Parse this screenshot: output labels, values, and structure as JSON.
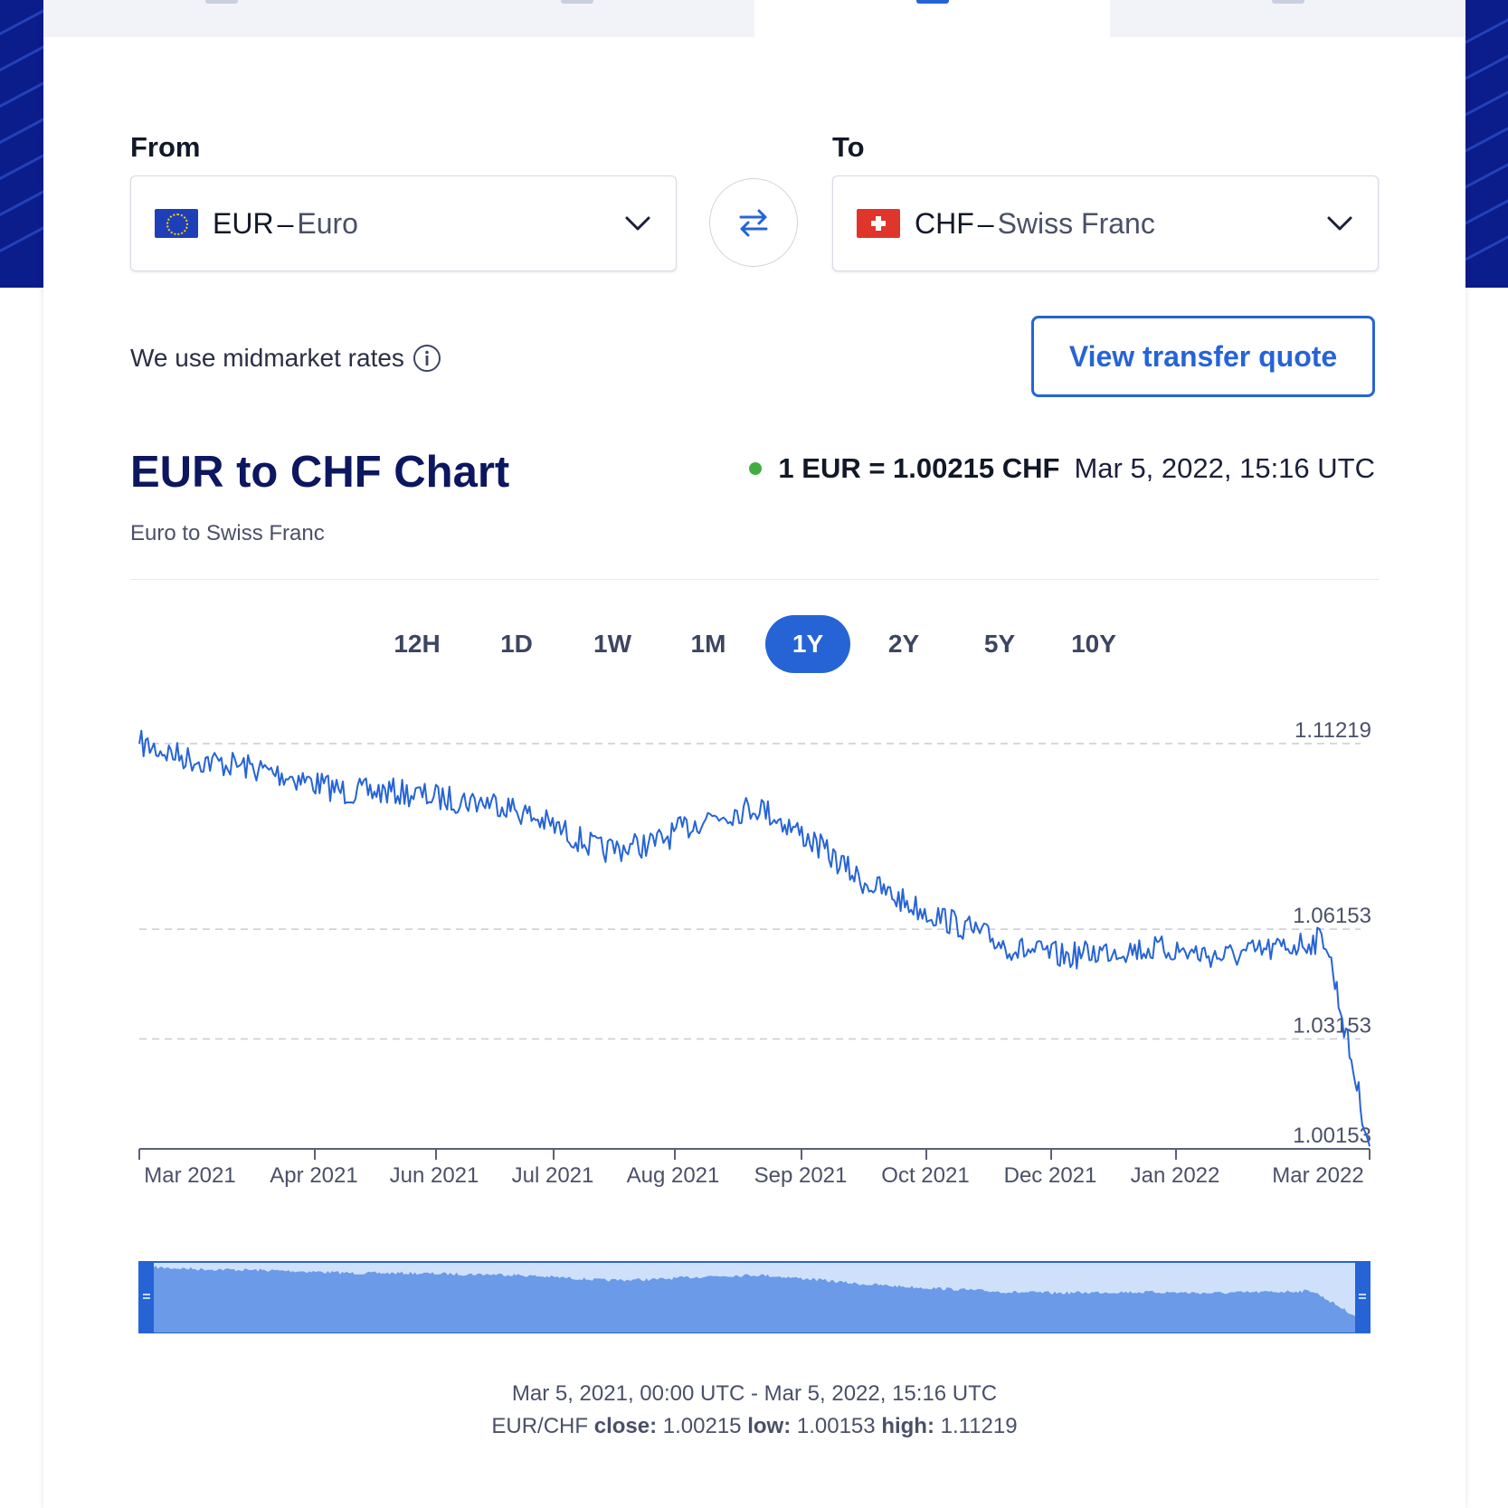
{
  "from": {
    "label": "From",
    "code": "EUR",
    "name": "Euro"
  },
  "to": {
    "label": "To",
    "code": "CHF",
    "name": "Swiss Franc"
  },
  "dash": "–",
  "midmarket_text": "We use midmarket rates",
  "quote_button": "View transfer quote",
  "chart": {
    "title": "EUR to CHF Chart",
    "subtitle": "Euro to Swiss Franc",
    "rate": "1 EUR = 1.00215 CHF",
    "rate_time": "Mar 5, 2022, 15:16 UTC"
  },
  "ranges": [
    "12H",
    "1D",
    "1W",
    "1M",
    "1Y",
    "2Y",
    "5Y",
    "10Y"
  ],
  "active_range": "1Y",
  "colors": {
    "accent": "#2664d6",
    "title": "#0c1760",
    "live": "#3fae3f"
  },
  "footer": {
    "period": "Mar 5, 2021, 00:00 UTC - Mar 5, 2022, 15:16 UTC",
    "pair": "EUR/CHF",
    "close_label": "close:",
    "close": "1.00215",
    "low_label": "low:",
    "low": "1.00153",
    "high_label": "high:",
    "high": "1.11219"
  },
  "chart_data": {
    "type": "line",
    "y_ticks": [
      "1.11219",
      "1.06153",
      "1.03153",
      "1.00153"
    ],
    "x_ticks": [
      "Mar 2021",
      "Apr 2021",
      "Jun 2021",
      "Jul 2021",
      "Aug 2021",
      "Sep 2021",
      "Oct 2021",
      "Dec 2021",
      "Jan 2022",
      "Mar 2022"
    ],
    "ylim": [
      1.00153,
      1.11219
    ],
    "grid": true,
    "x": [
      "2021-03-05",
      "2021-03-20",
      "2021-04-05",
      "2021-04-20",
      "2021-05-05",
      "2021-05-20",
      "2021-06-05",
      "2021-06-20",
      "2021-07-05",
      "2021-07-20",
      "2021-08-05",
      "2021-08-20",
      "2021-09-05",
      "2021-09-20",
      "2021-10-05",
      "2021-10-20",
      "2021-11-05",
      "2021-11-20",
      "2021-12-05",
      "2021-12-20",
      "2022-01-05",
      "2022-01-20",
      "2022-02-05",
      "2022-02-20",
      "2022-03-05"
    ],
    "values": [
      1.1122,
      1.108,
      1.106,
      1.103,
      1.099,
      1.099,
      1.097,
      1.096,
      1.09,
      1.083,
      1.085,
      1.092,
      1.095,
      1.086,
      1.075,
      1.068,
      1.062,
      1.056,
      1.054,
      1.056,
      1.056,
      1.054,
      1.056,
      1.059,
      1.0022
    ]
  }
}
